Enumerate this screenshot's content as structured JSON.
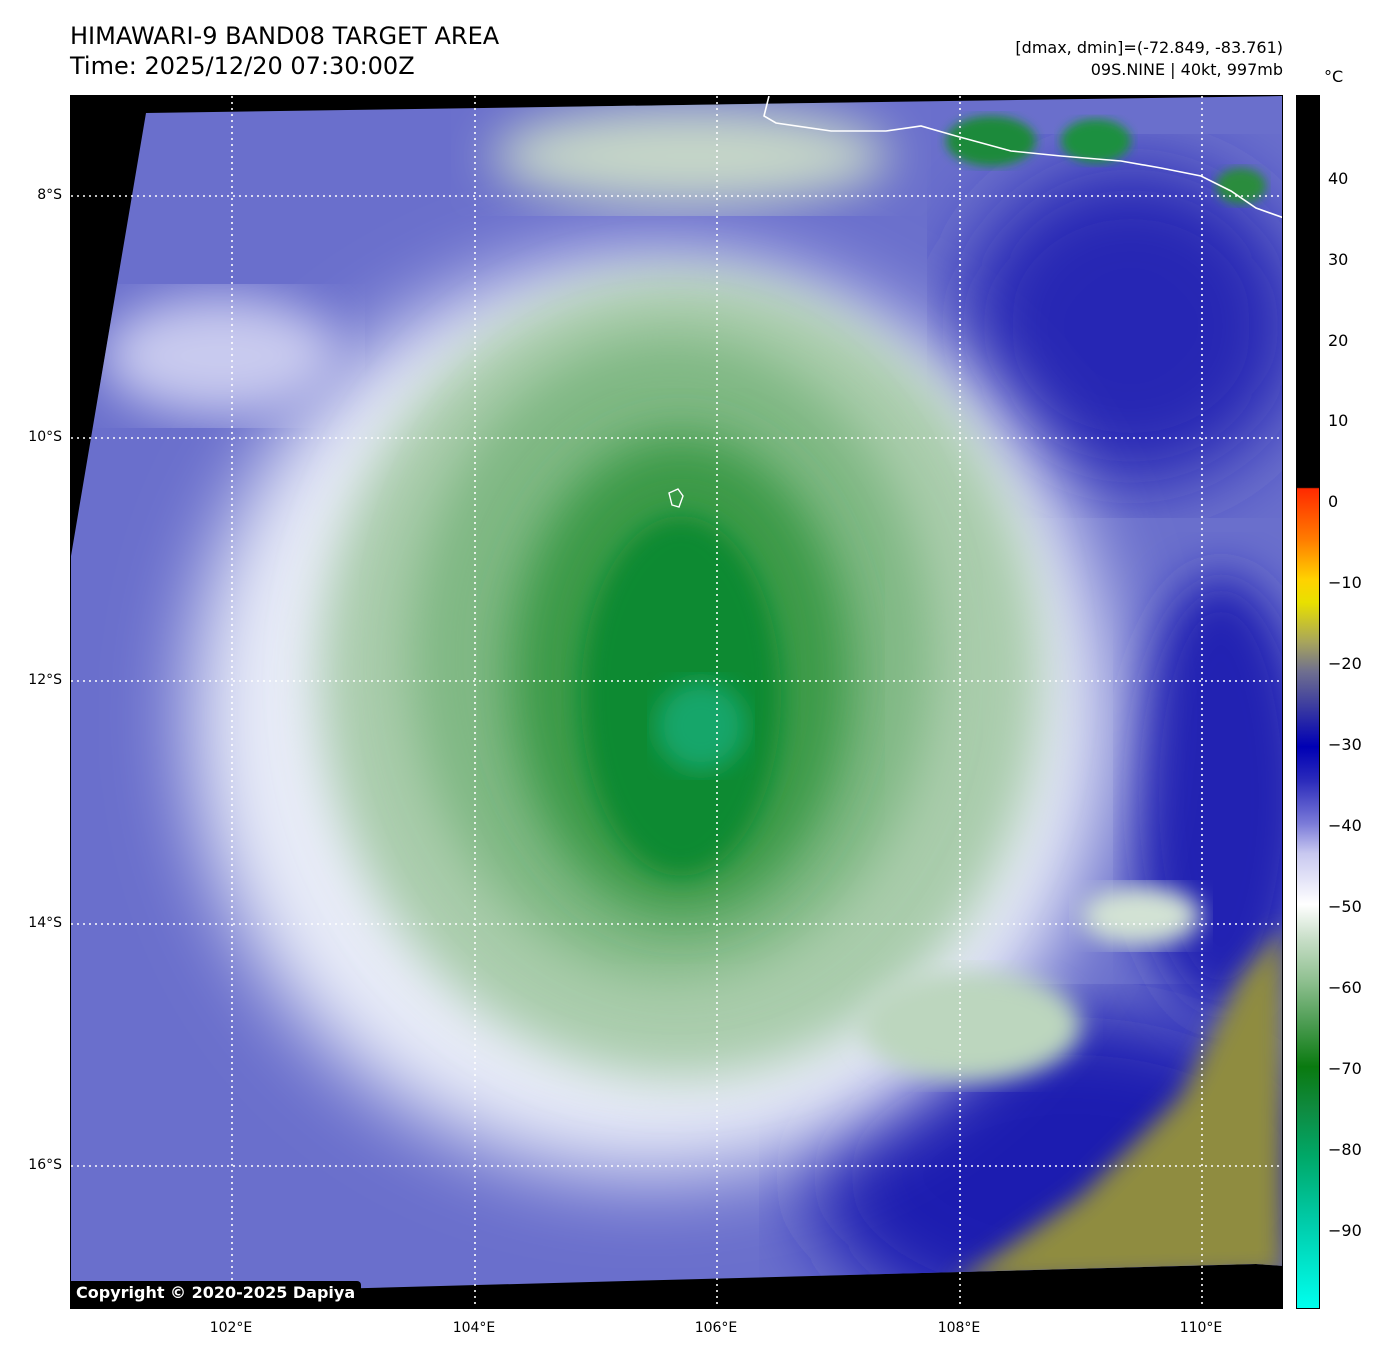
{
  "header": {
    "title": "HIMAWARI-9 BAND08 TARGET AREA",
    "time": "Time: 2025/12/20 07:30:00Z",
    "data_range": "[dmax, dmin]=(-72.849, -83.761)",
    "storm": "09S.NINE | 40kt, 997mb"
  },
  "map": {
    "lat_ticks": [
      "8°S",
      "10°S",
      "12°S",
      "14°S",
      "16°S"
    ],
    "lon_ticks": [
      "102°E",
      "104°E",
      "106°E",
      "108°E",
      "110°E"
    ],
    "grid_color": "#ffffff",
    "coastline_color": "#ffffff",
    "no_data_color": "#000000"
  },
  "colorbar": {
    "unit": "°C",
    "labels": [
      "40",
      "30",
      "20",
      "10",
      "0",
      "−10",
      "−20",
      "−30",
      "−40",
      "−50",
      "−60",
      "−70",
      "−80",
      "−90"
    ]
  },
  "copyright": "Copyright © 2020-2025 Dapiya"
}
